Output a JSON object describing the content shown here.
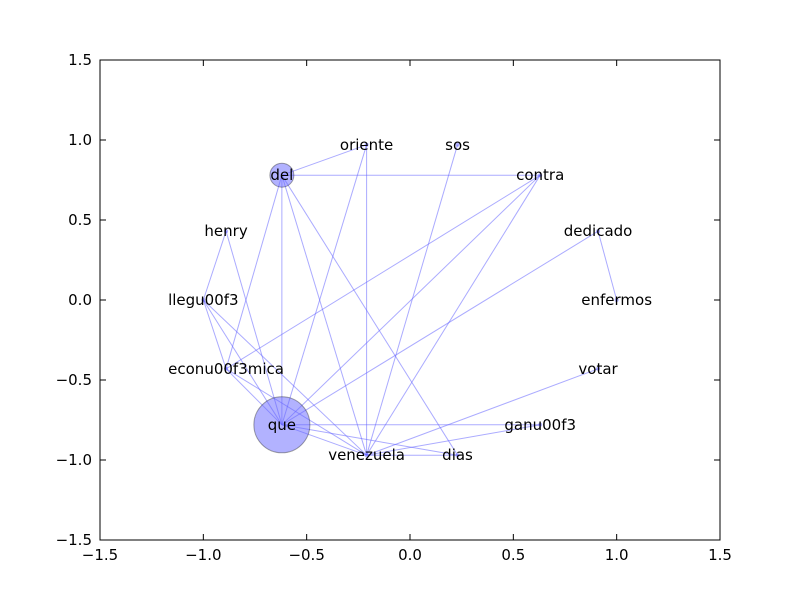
{
  "chart_data": {
    "type": "network",
    "xlim": [
      -1.5,
      1.5
    ],
    "ylim": [
      -1.5,
      1.5
    ],
    "x_ticks": [
      "−1.5",
      "−1.0",
      "−0.5",
      "0.0",
      "0.5",
      "1.0",
      "1.5"
    ],
    "x_tick_values": [
      -1.5,
      -1.0,
      -0.5,
      0.0,
      0.5,
      1.0,
      1.5
    ],
    "y_ticks": [
      "1.5",
      "1.0",
      "0.5",
      "0.0",
      "−0.5",
      "−1.0",
      "−1.5"
    ],
    "y_tick_values": [
      1.5,
      1.0,
      0.5,
      0.0,
      -0.5,
      -1.0,
      -1.5
    ],
    "edge_color": "#6666ff",
    "node_color": "#6666ff",
    "grid": false,
    "nodes": [
      {
        "id": "del",
        "label": "del",
        "x": -0.62,
        "y": 0.78,
        "size": 1
      },
      {
        "id": "oriente",
        "label": "oriente",
        "x": -0.21,
        "y": 0.97,
        "size": 0
      },
      {
        "id": "sos",
        "label": "sos",
        "x": 0.23,
        "y": 0.97,
        "size": 0
      },
      {
        "id": "contra",
        "label": "contra",
        "x": 0.63,
        "y": 0.78,
        "size": 0
      },
      {
        "id": "henry",
        "label": "henry",
        "x": -0.89,
        "y": 0.43,
        "size": 0
      },
      {
        "id": "dedicado",
        "label": "dedicado",
        "x": 0.91,
        "y": 0.43,
        "size": 0
      },
      {
        "id": "llegu00f3",
        "label": "llegu00f3",
        "x": -1.0,
        "y": 0.0,
        "size": 0
      },
      {
        "id": "enfermos",
        "label": "enfermos",
        "x": 1.0,
        "y": 0.0,
        "size": 0
      },
      {
        "id": "econu00f3mica",
        "label": "econu00f3mica",
        "x": -0.89,
        "y": -0.43,
        "size": 0
      },
      {
        "id": "votar",
        "label": "votar",
        "x": 0.91,
        "y": -0.43,
        "size": 0
      },
      {
        "id": "ganu00f3",
        "label": "ganu00f3",
        "x": 0.63,
        "y": -0.78,
        "size": 0
      },
      {
        "id": "que",
        "label": "que",
        "x": -0.62,
        "y": -0.78,
        "size": 3
      },
      {
        "id": "venezuela",
        "label": "venezuela",
        "x": -0.21,
        "y": -0.97,
        "size": 0
      },
      {
        "id": "dias",
        "label": "dias",
        "x": 0.23,
        "y": -0.97,
        "size": 0
      }
    ],
    "edges": [
      [
        "del",
        "oriente"
      ],
      [
        "del",
        "contra"
      ],
      [
        "del",
        "que"
      ],
      [
        "del",
        "econu00f3mica"
      ],
      [
        "del",
        "venezuela"
      ],
      [
        "del",
        "dias"
      ],
      [
        "oriente",
        "venezuela"
      ],
      [
        "oriente",
        "que"
      ],
      [
        "sos",
        "venezuela"
      ],
      [
        "contra",
        "que"
      ],
      [
        "contra",
        "venezuela"
      ],
      [
        "contra",
        "econu00f3mica"
      ],
      [
        "henry",
        "llegu00f3"
      ],
      [
        "henry",
        "que"
      ],
      [
        "dedicado",
        "enfermos"
      ],
      [
        "dedicado",
        "que"
      ],
      [
        "llegu00f3",
        "que"
      ],
      [
        "llegu00f3",
        "venezuela"
      ],
      [
        "llegu00f3",
        "econu00f3mica"
      ],
      [
        "econu00f3mica",
        "venezuela"
      ],
      [
        "econu00f3mica",
        "que"
      ],
      [
        "que",
        "venezuela"
      ],
      [
        "que",
        "dias"
      ],
      [
        "que",
        "ganu00f3"
      ],
      [
        "venezuela",
        "dias"
      ],
      [
        "venezuela",
        "votar"
      ],
      [
        "venezuela",
        "ganu00f3"
      ]
    ]
  }
}
